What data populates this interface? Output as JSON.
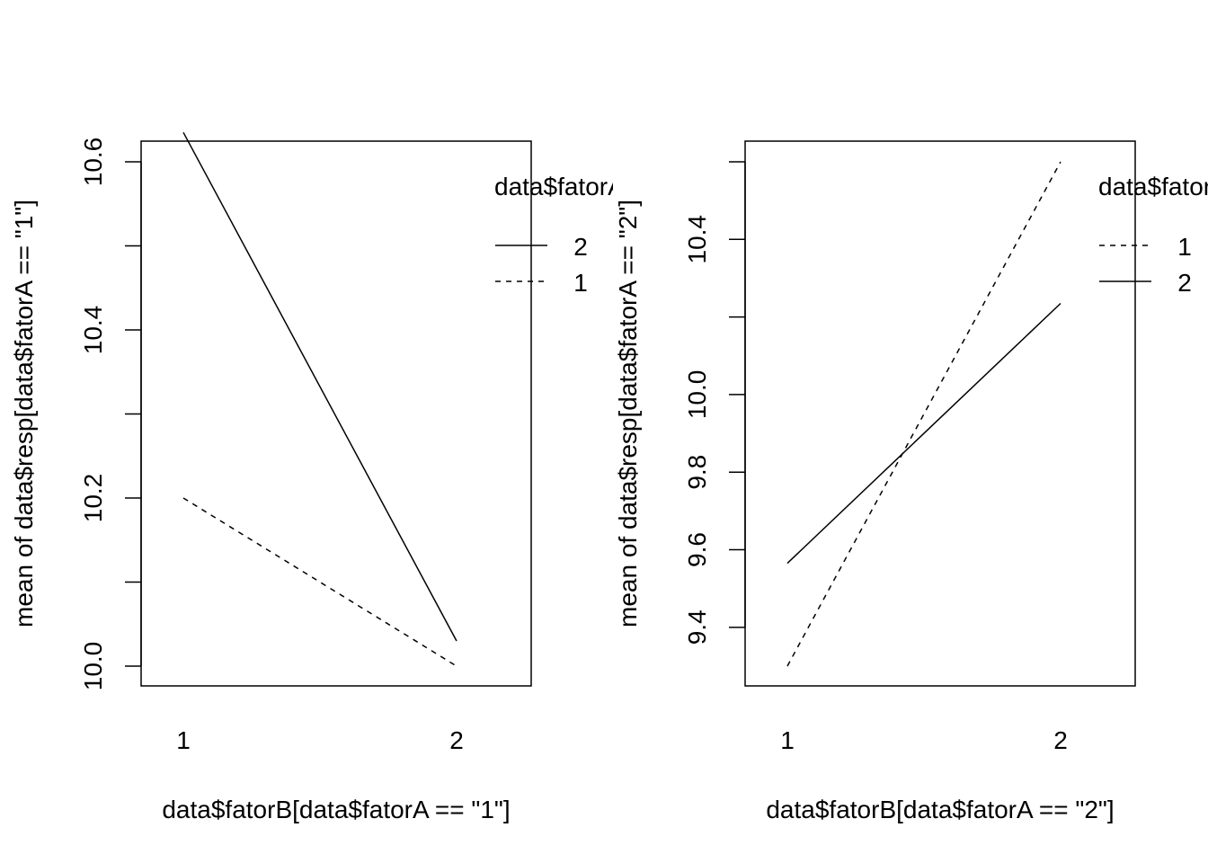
{
  "chart_data": [
    {
      "type": "line",
      "categories": [
        "1",
        "2"
      ],
      "xlabel": "data$fatorB[data$fatorA == \"1\"]",
      "ylabel": "mean of  data$resp[data$fatorA == \"1\"]",
      "ylim": [
        10.0,
        10.6
      ],
      "y_ticks": [
        "10.0",
        "10.2",
        "10.4",
        "10.6"
      ],
      "y_minor_ticks": [
        10.1,
        10.3,
        10.5
      ],
      "legend_title": "data$fatorA",
      "legend_placement": "top-right",
      "grid": false,
      "series": [
        {
          "name": "2",
          "values": [
            10.635,
            10.03
          ],
          "line_style": "solid"
        },
        {
          "name": "1",
          "values": [
            10.2,
            10.0
          ],
          "line_style": "dashed"
        }
      ]
    },
    {
      "type": "line",
      "categories": [
        "1",
        "2"
      ],
      "xlabel": "data$fatorB[data$fatorA == \"2\"]",
      "ylabel": "mean of  data$resp[data$fatorA == \"2\"]",
      "ylim": [
        9.3,
        10.6
      ],
      "y_ticks": [
        "9.4",
        "9.6",
        "9.8",
        "10.0",
        "10.4"
      ],
      "y_minor_ticks": [
        10.2,
        10.6
      ],
      "legend_title": "data$fatorA",
      "legend_placement": "top-right",
      "grid": false,
      "series": [
        {
          "name": "1",
          "values": [
            9.3,
            10.6
          ],
          "line_style": "dashed"
        },
        {
          "name": "2",
          "values": [
            9.565,
            10.235
          ],
          "line_style": "solid"
        }
      ]
    }
  ]
}
